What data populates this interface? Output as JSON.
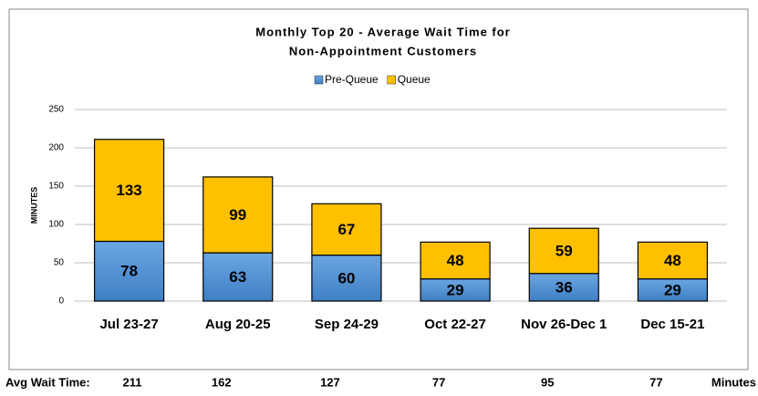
{
  "chart_data": {
    "type": "stacked_bar",
    "title": [
      "Monthly Top 20 - Average Wait Time for",
      "Non-Appointment Customers"
    ],
    "y_label": "MINUTES",
    "categories": [
      "Jul 23-27",
      "Aug 20-25",
      "Sep 24-29",
      "Oct 22-27",
      "Nov 26-Dec 1",
      "Dec 15-21"
    ],
    "series": [
      {
        "name": "Pre-Queue",
        "color": "#4f8fd0",
        "values": [
          78,
          63,
          60,
          29,
          36,
          29
        ]
      },
      {
        "name": "Queue",
        "color": "#ffc000",
        "values": [
          133,
          99,
          67,
          48,
          59,
          48
        ]
      }
    ],
    "ylim": [
      0,
      250
    ],
    "yticks": [
      0,
      50,
      100,
      150,
      200,
      250
    ],
    "grid": true,
    "legend": "top"
  },
  "footer": {
    "label": "Avg Wait Time:",
    "values": [
      211,
      162,
      127,
      77,
      95,
      77
    ],
    "unit": "Minutes"
  }
}
